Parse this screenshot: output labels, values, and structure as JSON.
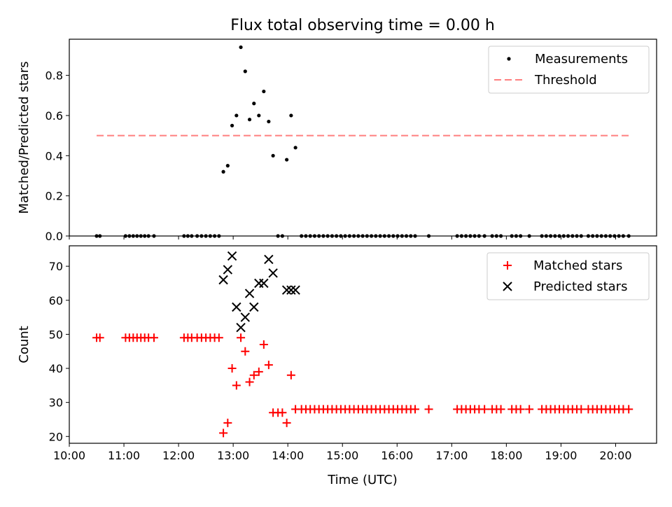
{
  "chart_data": {
    "title": "Flux total observing time = 0.00 h",
    "xlabel": "Time (UTC)",
    "x_unit": "hours UTC",
    "xlim": [
      10.0,
      20.75
    ],
    "x_ticks": [
      {
        "v": 10,
        "label": "10:00"
      },
      {
        "v": 11,
        "label": "11:00"
      },
      {
        "v": 12,
        "label": "12:00"
      },
      {
        "v": 13,
        "label": "13:00"
      },
      {
        "v": 14,
        "label": "14:00"
      },
      {
        "v": 15,
        "label": "15:00"
      },
      {
        "v": 16,
        "label": "16:00"
      },
      {
        "v": 17,
        "label": "17:00"
      },
      {
        "v": 18,
        "label": "18:00"
      },
      {
        "v": 19,
        "label": "19:00"
      },
      {
        "v": 20,
        "label": "20:00"
      }
    ],
    "panels": [
      {
        "type": "scatter",
        "ylabel": "Matched/Predicted stars",
        "ylim": [
          0,
          0.98
        ],
        "y_ticks": [
          {
            "v": 0.0,
            "label": "0.0"
          },
          {
            "v": 0.2,
            "label": "0.2"
          },
          {
            "v": 0.4,
            "label": "0.4"
          },
          {
            "v": 0.6,
            "label": "0.6"
          },
          {
            "v": 0.8,
            "label": "0.8"
          }
        ],
        "legend_position": "upper-right",
        "legend": [
          {
            "label": "Measurements",
            "marker": "dot",
            "color": "#000000"
          },
          {
            "label": "Threshold",
            "marker": "dashed-line",
            "color": "#ff7f7f"
          }
        ],
        "threshold": {
          "y": 0.5,
          "x_range": [
            10.5,
            20.25
          ],
          "color": "#ff7f7f"
        },
        "series": [
          {
            "name": "Measurements",
            "color": "#000000",
            "points": [
              [
                10.5,
                0
              ],
              [
                10.56,
                0
              ],
              [
                11.03,
                0
              ],
              [
                11.1,
                0
              ],
              [
                11.17,
                0
              ],
              [
                11.24,
                0
              ],
              [
                11.31,
                0
              ],
              [
                11.38,
                0
              ],
              [
                11.45,
                0
              ],
              [
                11.55,
                0
              ],
              [
                12.1,
                0
              ],
              [
                12.17,
                0
              ],
              [
                12.24,
                0
              ],
              [
                12.34,
                0
              ],
              [
                12.42,
                0
              ],
              [
                12.5,
                0
              ],
              [
                12.58,
                0
              ],
              [
                12.66,
                0
              ],
              [
                12.74,
                0
              ],
              [
                12.82,
                0.32
              ],
              [
                12.9,
                0.35
              ],
              [
                12.98,
                0.55
              ],
              [
                13.06,
                0.6
              ],
              [
                13.14,
                0.94
              ],
              [
                13.22,
                0.82
              ],
              [
                13.3,
                0.58
              ],
              [
                13.38,
                0.66
              ],
              [
                13.47,
                0.6
              ],
              [
                13.56,
                0.72
              ],
              [
                13.65,
                0.57
              ],
              [
                13.73,
                0.4
              ],
              [
                13.82,
                0
              ],
              [
                13.9,
                0
              ],
              [
                13.98,
                0.38
              ],
              [
                14.06,
                0.6
              ],
              [
                14.14,
                0.44
              ],
              [
                14.25,
                0
              ],
              [
                14.33,
                0
              ],
              [
                14.41,
                0
              ],
              [
                14.49,
                0
              ],
              [
                14.57,
                0
              ],
              [
                14.65,
                0
              ],
              [
                14.73,
                0
              ],
              [
                14.81,
                0
              ],
              [
                14.89,
                0
              ],
              [
                14.97,
                0
              ],
              [
                15.05,
                0
              ],
              [
                15.13,
                0
              ],
              [
                15.21,
                0
              ],
              [
                15.29,
                0
              ],
              [
                15.37,
                0
              ],
              [
                15.45,
                0
              ],
              [
                15.53,
                0
              ],
              [
                15.61,
                0
              ],
              [
                15.69,
                0
              ],
              [
                15.77,
                0
              ],
              [
                15.85,
                0
              ],
              [
                15.93,
                0
              ],
              [
                16.01,
                0
              ],
              [
                16.09,
                0
              ],
              [
                16.17,
                0
              ],
              [
                16.25,
                0
              ],
              [
                16.33,
                0
              ],
              [
                16.58,
                0
              ],
              [
                17.1,
                0
              ],
              [
                17.18,
                0
              ],
              [
                17.26,
                0
              ],
              [
                17.34,
                0
              ],
              [
                17.42,
                0
              ],
              [
                17.5,
                0
              ],
              [
                17.6,
                0
              ],
              [
                17.74,
                0
              ],
              [
                17.82,
                0
              ],
              [
                17.9,
                0
              ],
              [
                18.1,
                0
              ],
              [
                18.18,
                0
              ],
              [
                18.26,
                0
              ],
              [
                18.42,
                0
              ],
              [
                18.65,
                0
              ],
              [
                18.73,
                0
              ],
              [
                18.81,
                0
              ],
              [
                18.89,
                0
              ],
              [
                18.97,
                0
              ],
              [
                19.05,
                0
              ],
              [
                19.13,
                0
              ],
              [
                19.21,
                0
              ],
              [
                19.29,
                0
              ],
              [
                19.37,
                0
              ],
              [
                19.5,
                0
              ],
              [
                19.58,
                0
              ],
              [
                19.66,
                0
              ],
              [
                19.74,
                0
              ],
              [
                19.82,
                0
              ],
              [
                19.9,
                0
              ],
              [
                19.98,
                0
              ],
              [
                20.06,
                0
              ],
              [
                20.14,
                0
              ],
              [
                20.24,
                0
              ]
            ]
          }
        ]
      },
      {
        "type": "scatter",
        "ylabel": "Count",
        "ylim": [
          18,
          76
        ],
        "y_ticks": [
          {
            "v": 20,
            "label": "20"
          },
          {
            "v": 30,
            "label": "30"
          },
          {
            "v": 40,
            "label": "40"
          },
          {
            "v": 50,
            "label": "50"
          },
          {
            "v": 60,
            "label": "60"
          },
          {
            "v": 70,
            "label": "70"
          }
        ],
        "legend_position": "upper-right",
        "legend": [
          {
            "label": "Matched stars",
            "marker": "plus",
            "color": "#ff0000"
          },
          {
            "label": "Predicted stars",
            "marker": "x",
            "color": "#000000"
          }
        ],
        "series": [
          {
            "name": "Matched stars",
            "marker": "plus",
            "color": "#ff0000",
            "points": [
              [
                10.5,
                49
              ],
              [
                10.56,
                49
              ],
              [
                11.03,
                49
              ],
              [
                11.1,
                49
              ],
              [
                11.17,
                49
              ],
              [
                11.24,
                49
              ],
              [
                11.31,
                49
              ],
              [
                11.38,
                49
              ],
              [
                11.45,
                49
              ],
              [
                11.55,
                49
              ],
              [
                12.1,
                49
              ],
              [
                12.17,
                49
              ],
              [
                12.24,
                49
              ],
              [
                12.34,
                49
              ],
              [
                12.42,
                49
              ],
              [
                12.5,
                49
              ],
              [
                12.58,
                49
              ],
              [
                12.66,
                49
              ],
              [
                12.74,
                49
              ],
              [
                12.82,
                21
              ],
              [
                12.9,
                24
              ],
              [
                12.98,
                40
              ],
              [
                13.06,
                35
              ],
              [
                13.14,
                49
              ],
              [
                13.22,
                45
              ],
              [
                13.3,
                36
              ],
              [
                13.38,
                38
              ],
              [
                13.47,
                39
              ],
              [
                13.56,
                47
              ],
              [
                13.65,
                41
              ],
              [
                13.73,
                27
              ],
              [
                13.82,
                27
              ],
              [
                13.9,
                27
              ],
              [
                13.98,
                24
              ],
              [
                14.06,
                38
              ],
              [
                14.14,
                28
              ],
              [
                14.25,
                28
              ],
              [
                14.33,
                28
              ],
              [
                14.41,
                28
              ],
              [
                14.49,
                28
              ],
              [
                14.57,
                28
              ],
              [
                14.65,
                28
              ],
              [
                14.73,
                28
              ],
              [
                14.81,
                28
              ],
              [
                14.89,
                28
              ],
              [
                14.97,
                28
              ],
              [
                15.05,
                28
              ],
              [
                15.13,
                28
              ],
              [
                15.21,
                28
              ],
              [
                15.29,
                28
              ],
              [
                15.37,
                28
              ],
              [
                15.45,
                28
              ],
              [
                15.53,
                28
              ],
              [
                15.61,
                28
              ],
              [
                15.69,
                28
              ],
              [
                15.77,
                28
              ],
              [
                15.85,
                28
              ],
              [
                15.93,
                28
              ],
              [
                16.01,
                28
              ],
              [
                16.09,
                28
              ],
              [
                16.17,
                28
              ],
              [
                16.25,
                28
              ],
              [
                16.33,
                28
              ],
              [
                16.58,
                28
              ],
              [
                17.1,
                28
              ],
              [
                17.18,
                28
              ],
              [
                17.26,
                28
              ],
              [
                17.34,
                28
              ],
              [
                17.42,
                28
              ],
              [
                17.5,
                28
              ],
              [
                17.6,
                28
              ],
              [
                17.74,
                28
              ],
              [
                17.82,
                28
              ],
              [
                17.9,
                28
              ],
              [
                18.1,
                28
              ],
              [
                18.18,
                28
              ],
              [
                18.26,
                28
              ],
              [
                18.42,
                28
              ],
              [
                18.65,
                28
              ],
              [
                18.73,
                28
              ],
              [
                18.81,
                28
              ],
              [
                18.89,
                28
              ],
              [
                18.97,
                28
              ],
              [
                19.05,
                28
              ],
              [
                19.13,
                28
              ],
              [
                19.21,
                28
              ],
              [
                19.29,
                28
              ],
              [
                19.37,
                28
              ],
              [
                19.5,
                28
              ],
              [
                19.58,
                28
              ],
              [
                19.66,
                28
              ],
              [
                19.74,
                28
              ],
              [
                19.82,
                28
              ],
              [
                19.9,
                28
              ],
              [
                19.98,
                28
              ],
              [
                20.06,
                28
              ],
              [
                20.14,
                28
              ],
              [
                20.24,
                28
              ]
            ]
          },
          {
            "name": "Predicted stars",
            "marker": "x",
            "color": "#000000",
            "points": [
              [
                12.82,
                66
              ],
              [
                12.9,
                69
              ],
              [
                12.98,
                73
              ],
              [
                13.06,
                58
              ],
              [
                13.14,
                52
              ],
              [
                13.22,
                55
              ],
              [
                13.3,
                62
              ],
              [
                13.38,
                58
              ],
              [
                13.47,
                65
              ],
              [
                13.56,
                65
              ],
              [
                13.65,
                72
              ],
              [
                13.73,
                68
              ],
              [
                13.98,
                63
              ],
              [
                14.06,
                63
              ],
              [
                14.14,
                63
              ]
            ]
          }
        ]
      }
    ]
  }
}
